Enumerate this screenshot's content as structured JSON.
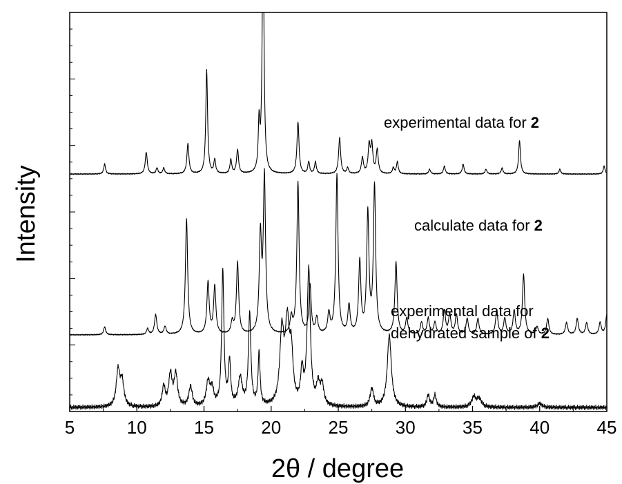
{
  "chart_data": {
    "type": "line",
    "title": "",
    "xlabel": "2θ / degree",
    "ylabel": "Intensity",
    "xlim": [
      5,
      45
    ],
    "x_ticks": [
      "5",
      "10",
      "15",
      "20",
      "25",
      "30",
      "35",
      "40",
      "45"
    ],
    "y_ticks_labeled": false,
    "grid": false,
    "annotations": [
      {
        "lines": [
          [
            "experimental data for ",
            ""
          ],
          [
            "",
            "2"
          ]
        ],
        "text": "experimental data for",
        "bold": "2"
      },
      {
        "text": "calculate data for",
        "bold": "2"
      },
      {
        "text": "experimental data for",
        "text2": "dehydrated sample of",
        "bold": "2"
      }
    ],
    "series": [
      {
        "baseline": 0.595,
        "peaks": [
          [
            7.6,
            0.025,
            0.08
          ],
          [
            10.7,
            0.055,
            0.09
          ],
          [
            11.5,
            0.015,
            0.08
          ],
          [
            12.0,
            0.015,
            0.08
          ],
          [
            13.8,
            0.075,
            0.09
          ],
          [
            15.2,
            0.26,
            0.08
          ],
          [
            15.8,
            0.035,
            0.08
          ],
          [
            17.0,
            0.035,
            0.08
          ],
          [
            17.5,
            0.06,
            0.09
          ],
          [
            19.1,
            0.12,
            0.07
          ],
          [
            19.4,
            0.62,
            0.08
          ],
          [
            22.0,
            0.13,
            0.09
          ],
          [
            22.8,
            0.03,
            0.08
          ],
          [
            23.3,
            0.03,
            0.08
          ],
          [
            25.1,
            0.09,
            0.09
          ],
          [
            25.7,
            0.015,
            0.08
          ],
          [
            26.8,
            0.04,
            0.09
          ],
          [
            27.3,
            0.07,
            0.09
          ],
          [
            27.5,
            0.07,
            0.09
          ],
          [
            27.9,
            0.06,
            0.09
          ],
          [
            29.1,
            0.015,
            0.08
          ],
          [
            29.4,
            0.03,
            0.08
          ],
          [
            31.8,
            0.012,
            0.08
          ],
          [
            32.9,
            0.02,
            0.08
          ],
          [
            34.3,
            0.025,
            0.08
          ],
          [
            36.0,
            0.012,
            0.08
          ],
          [
            37.2,
            0.015,
            0.08
          ],
          [
            38.5,
            0.085,
            0.08
          ],
          [
            41.5,
            0.012,
            0.08
          ],
          [
            44.8,
            0.02,
            0.08
          ]
        ]
      },
      {
        "baseline": 0.192,
        "peaks": [
          [
            7.6,
            0.02,
            0.09
          ],
          [
            10.8,
            0.015,
            0.09
          ],
          [
            11.4,
            0.05,
            0.1
          ],
          [
            12.1,
            0.02,
            0.1
          ],
          [
            13.7,
            0.29,
            0.1
          ],
          [
            15.3,
            0.13,
            0.1
          ],
          [
            15.8,
            0.12,
            0.1
          ],
          [
            17.1,
            0.03,
            0.1
          ],
          [
            17.5,
            0.18,
            0.1
          ],
          [
            19.2,
            0.24,
            0.1
          ],
          [
            19.5,
            0.39,
            0.1
          ],
          [
            21.5,
            0.04,
            0.1
          ],
          [
            22.0,
            0.38,
            0.1
          ],
          [
            22.9,
            0.12,
            0.1
          ],
          [
            23.4,
            0.04,
            0.1
          ],
          [
            24.3,
            0.05,
            0.1
          ],
          [
            24.9,
            0.4,
            0.1
          ],
          [
            25.8,
            0.07,
            0.1
          ],
          [
            26.6,
            0.18,
            0.1
          ],
          [
            27.2,
            0.3,
            0.1
          ],
          [
            27.7,
            0.37,
            0.1
          ],
          [
            29.3,
            0.18,
            0.1
          ],
          [
            30.1,
            0.04,
            0.1
          ],
          [
            31.2,
            0.03,
            0.1
          ],
          [
            31.7,
            0.04,
            0.1
          ],
          [
            32.2,
            0.03,
            0.1
          ],
          [
            32.9,
            0.06,
            0.1
          ],
          [
            33.3,
            0.05,
            0.1
          ],
          [
            33.8,
            0.05,
            0.1
          ],
          [
            34.6,
            0.04,
            0.1
          ],
          [
            35.4,
            0.04,
            0.1
          ],
          [
            36.8,
            0.06,
            0.1
          ],
          [
            37.4,
            0.04,
            0.1
          ],
          [
            38.1,
            0.06,
            0.1
          ],
          [
            38.8,
            0.15,
            0.1
          ],
          [
            39.8,
            0.02,
            0.1
          ],
          [
            40.6,
            0.04,
            0.1
          ],
          [
            42.0,
            0.03,
            0.1
          ],
          [
            42.8,
            0.04,
            0.1
          ],
          [
            43.5,
            0.03,
            0.1
          ],
          [
            44.5,
            0.03,
            0.1
          ],
          [
            45.0,
            0.05,
            0.1
          ]
        ]
      },
      {
        "baseline": 0.01,
        "peaks": [
          [
            8.6,
            0.09,
            0.16
          ],
          [
            8.9,
            0.06,
            0.16
          ],
          [
            12.0,
            0.05,
            0.13
          ],
          [
            12.5,
            0.08,
            0.15
          ],
          [
            12.9,
            0.08,
            0.15
          ],
          [
            14.0,
            0.05,
            0.15
          ],
          [
            15.3,
            0.06,
            0.16
          ],
          [
            15.6,
            0.04,
            0.15
          ],
          [
            16.4,
            0.34,
            0.1
          ],
          [
            16.9,
            0.11,
            0.1
          ],
          [
            17.7,
            0.07,
            0.18
          ],
          [
            18.4,
            0.23,
            0.11
          ],
          [
            19.1,
            0.13,
            0.09
          ],
          [
            20.8,
            0.18,
            0.18
          ],
          [
            21.2,
            0.19,
            0.18
          ],
          [
            21.5,
            0.12,
            0.15
          ],
          [
            22.3,
            0.08,
            0.12
          ],
          [
            22.8,
            0.34,
            0.14
          ],
          [
            23.5,
            0.05,
            0.15
          ],
          [
            23.8,
            0.05,
            0.15
          ],
          [
            27.5,
            0.045,
            0.15
          ],
          [
            28.8,
            0.18,
            0.18
          ],
          [
            31.7,
            0.03,
            0.12
          ],
          [
            32.2,
            0.03,
            0.12
          ],
          [
            35.1,
            0.025,
            0.2
          ],
          [
            35.5,
            0.02,
            0.2
          ],
          [
            40.0,
            0.01,
            0.2
          ]
        ]
      }
    ]
  },
  "text": {
    "ann1": "experimental data for",
    "ann1_bold": "2",
    "ann2": "calculate data for",
    "ann2_bold": "2",
    "ann3_line1": "experimental data for",
    "ann3_line2": "dehydrated sample of",
    "ann3_bold": "2"
  }
}
